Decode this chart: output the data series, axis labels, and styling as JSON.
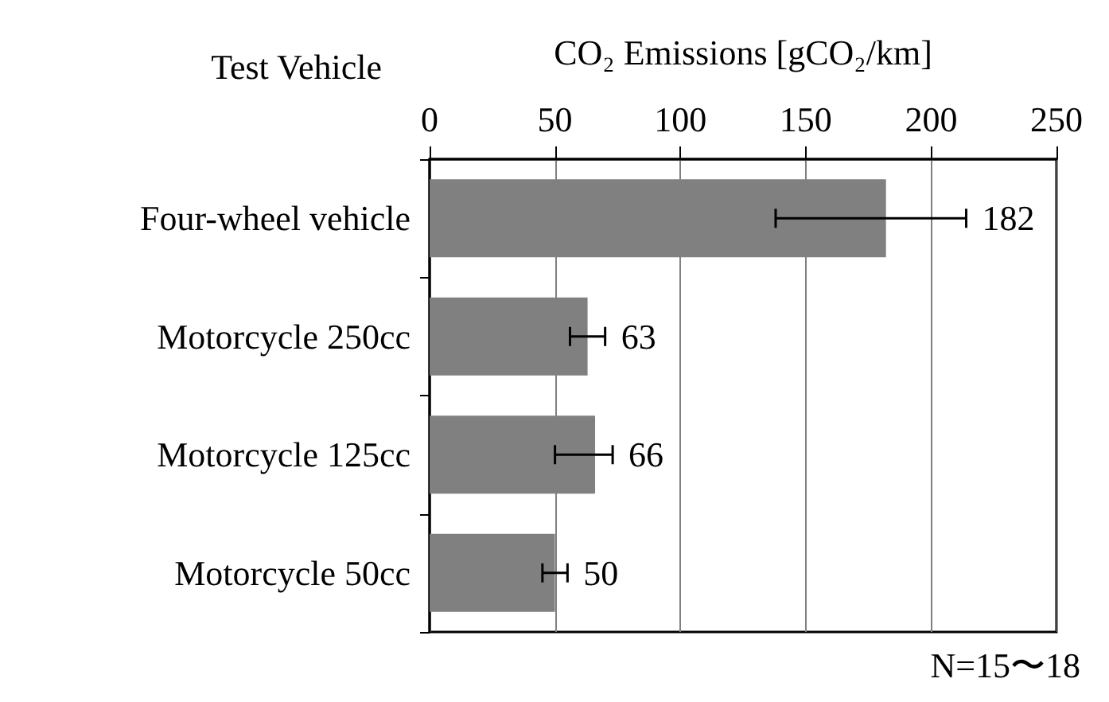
{
  "chart_data": {
    "type": "bar",
    "orientation": "horizontal",
    "xlabel": "CO₂ Emissions [gCO₂/km]",
    "ylabel": "Test Vehicle",
    "categories": [
      "Four-wheel vehicle",
      "Motorcycle 250cc",
      "Motorcycle 125cc",
      "Motorcycle 50cc"
    ],
    "values": [
      182,
      63,
      66,
      50
    ],
    "errors": [
      [
        138,
        214
      ],
      [
        56,
        70
      ],
      [
        50,
        73
      ],
      [
        45,
        55
      ]
    ],
    "color": "#808080",
    "xlim": [
      0,
      250
    ],
    "xticks": [
      0,
      50,
      100,
      150,
      200,
      250
    ],
    "grid": "x",
    "data_labels": true,
    "annotations": [
      "N=15〜18"
    ]
  }
}
